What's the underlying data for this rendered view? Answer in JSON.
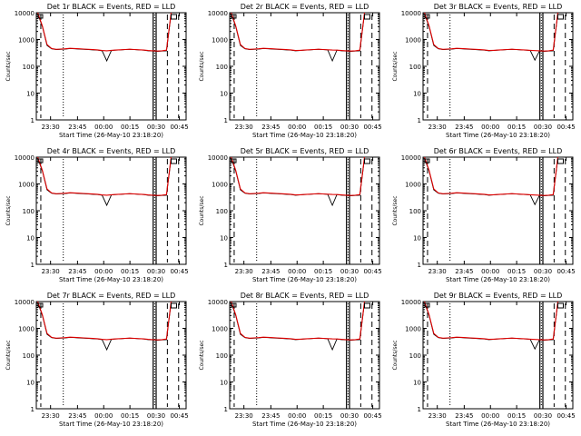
{
  "colors": {
    "events": "#000000",
    "lld": "#e00000",
    "background": "#ffffff",
    "axes": "#000000"
  },
  "shared_axes": {
    "ylabel": "Counts/sec",
    "xlabel": "Start Time (26-May-10 23:18:20)",
    "x_tick_labels": [
      "23:30",
      "23:45",
      "00:00",
      "00:15",
      "00:30",
      "00:45"
    ],
    "y_tick_labels": [
      "1",
      "10",
      "100",
      "1000",
      "10000"
    ],
    "y_scale": "log",
    "ylim": [
      1,
      10000
    ]
  },
  "chart_data": [
    {
      "type": "line",
      "title": "Det 1r BLACK = Events, RED = LLD",
      "series": [
        {
          "name": "Events",
          "values": [
            9000,
            3000,
            600,
            450,
            420,
            430,
            440,
            460,
            450,
            440,
            430,
            420,
            410,
            400,
            380,
            160,
            390,
            400,
            410,
            420,
            430,
            420,
            410,
            400,
            380,
            370,
            360,
            370,
            380,
            9000
          ]
        },
        {
          "name": "LLD",
          "values": [
            10000,
            3200,
            650,
            460,
            430,
            440,
            450,
            470,
            460,
            450,
            440,
            430,
            420,
            410,
            390,
            380,
            395,
            405,
            415,
            425,
            435,
            425,
            415,
            405,
            390,
            380,
            370,
            380,
            400,
            10000
          ]
        }
      ]
    },
    {
      "type": "line",
      "title": "Det 2r BLACK = Events, RED = LLD",
      "series": [
        {
          "name": "Events",
          "values": [
            9000,
            3000,
            600,
            450,
            420,
            430,
            440,
            460,
            450,
            440,
            430,
            420,
            410,
            400,
            380,
            390,
            400,
            410,
            420,
            430,
            420,
            410,
            160,
            400,
            380,
            370,
            360,
            370,
            380,
            9000
          ]
        },
        {
          "name": "LLD",
          "values": [
            10000,
            3200,
            650,
            460,
            430,
            440,
            450,
            470,
            460,
            450,
            440,
            430,
            420,
            410,
            390,
            395,
            405,
            415,
            425,
            435,
            425,
            415,
            405,
            400,
            390,
            380,
            370,
            380,
            400,
            10000
          ]
        }
      ]
    },
    {
      "type": "line",
      "title": "Det 3r BLACK = Events, RED = LLD",
      "series": [
        {
          "name": "Events",
          "values": [
            9000,
            3000,
            600,
            450,
            420,
            430,
            440,
            460,
            450,
            440,
            430,
            420,
            410,
            400,
            380,
            390,
            400,
            410,
            420,
            430,
            420,
            410,
            400,
            390,
            170,
            370,
            360,
            370,
            380,
            9000
          ]
        },
        {
          "name": "LLD",
          "values": [
            10000,
            3200,
            650,
            460,
            430,
            440,
            450,
            470,
            460,
            450,
            440,
            430,
            420,
            410,
            390,
            395,
            405,
            415,
            425,
            435,
            425,
            415,
            405,
            395,
            385,
            380,
            370,
            380,
            400,
            10000
          ]
        }
      ]
    },
    {
      "type": "line",
      "title": "Det 4r BLACK = Events, RED = LLD",
      "series": [
        {
          "name": "Events",
          "values": [
            9000,
            3000,
            600,
            450,
            420,
            430,
            440,
            460,
            450,
            440,
            430,
            420,
            410,
            400,
            380,
            160,
            390,
            400,
            410,
            420,
            430,
            420,
            410,
            400,
            380,
            370,
            360,
            370,
            380,
            9000
          ]
        },
        {
          "name": "LLD",
          "values": [
            10000,
            3200,
            650,
            460,
            430,
            440,
            450,
            470,
            460,
            450,
            440,
            430,
            420,
            410,
            390,
            380,
            395,
            405,
            415,
            425,
            435,
            425,
            415,
            405,
            390,
            380,
            370,
            380,
            400,
            10000
          ]
        }
      ]
    },
    {
      "type": "line",
      "title": "Det 5r BLACK = Events, RED = LLD",
      "series": [
        {
          "name": "Events",
          "values": [
            9000,
            3000,
            600,
            450,
            420,
            430,
            440,
            460,
            450,
            440,
            430,
            420,
            410,
            400,
            380,
            390,
            400,
            410,
            420,
            430,
            420,
            410,
            160,
            400,
            380,
            370,
            360,
            370,
            380,
            9000
          ]
        },
        {
          "name": "LLD",
          "values": [
            10000,
            3200,
            650,
            460,
            430,
            440,
            450,
            470,
            460,
            450,
            440,
            430,
            420,
            410,
            390,
            395,
            405,
            415,
            425,
            435,
            425,
            415,
            405,
            400,
            390,
            380,
            370,
            380,
            400,
            10000
          ]
        }
      ]
    },
    {
      "type": "line",
      "title": "Det 6r BLACK = Events, RED = LLD",
      "series": [
        {
          "name": "Events",
          "values": [
            9000,
            3000,
            600,
            450,
            420,
            430,
            440,
            460,
            450,
            440,
            430,
            420,
            410,
            400,
            380,
            390,
            400,
            410,
            420,
            430,
            420,
            410,
            400,
            390,
            170,
            370,
            360,
            370,
            380,
            9000
          ]
        },
        {
          "name": "LLD",
          "values": [
            10000,
            3200,
            650,
            460,
            430,
            440,
            450,
            470,
            460,
            450,
            440,
            430,
            420,
            410,
            390,
            395,
            405,
            415,
            425,
            435,
            425,
            415,
            405,
            395,
            385,
            380,
            370,
            380,
            400,
            10000
          ]
        }
      ]
    },
    {
      "type": "line",
      "title": "Det 7r BLACK = Events, RED = LLD",
      "series": [
        {
          "name": "Events",
          "values": [
            9000,
            3000,
            600,
            450,
            420,
            430,
            440,
            460,
            450,
            440,
            430,
            420,
            410,
            400,
            380,
            160,
            390,
            400,
            410,
            420,
            430,
            420,
            410,
            400,
            380,
            370,
            360,
            370,
            380,
            9000
          ]
        },
        {
          "name": "LLD",
          "values": [
            10000,
            3200,
            650,
            460,
            430,
            440,
            450,
            470,
            460,
            450,
            440,
            430,
            420,
            410,
            390,
            380,
            395,
            405,
            415,
            425,
            435,
            425,
            415,
            405,
            390,
            380,
            370,
            380,
            400,
            10000
          ]
        }
      ]
    },
    {
      "type": "line",
      "title": "Det 8r BLACK = Events, RED = LLD",
      "series": [
        {
          "name": "Events",
          "values": [
            9000,
            3000,
            600,
            450,
            420,
            430,
            440,
            460,
            450,
            440,
            430,
            420,
            410,
            400,
            380,
            390,
            400,
            410,
            420,
            430,
            420,
            410,
            160,
            400,
            380,
            370,
            360,
            370,
            380,
            9000
          ]
        },
        {
          "name": "LLD",
          "values": [
            10000,
            3200,
            650,
            460,
            430,
            440,
            450,
            470,
            460,
            450,
            440,
            430,
            420,
            410,
            390,
            395,
            405,
            415,
            425,
            435,
            425,
            415,
            405,
            400,
            390,
            380,
            370,
            380,
            400,
            10000
          ]
        }
      ]
    },
    {
      "type": "line",
      "title": "Det 9r BLACK = Events, RED = LLD",
      "series": [
        {
          "name": "Events",
          "values": [
            9000,
            3000,
            600,
            450,
            420,
            430,
            440,
            460,
            450,
            440,
            430,
            420,
            410,
            400,
            380,
            390,
            400,
            410,
            420,
            430,
            420,
            410,
            400,
            390,
            170,
            370,
            360,
            370,
            380,
            9000
          ]
        },
        {
          "name": "LLD",
          "values": [
            10000,
            3200,
            650,
            460,
            430,
            440,
            450,
            470,
            460,
            450,
            440,
            430,
            420,
            410,
            390,
            395,
            405,
            415,
            425,
            435,
            425,
            415,
            405,
            395,
            385,
            380,
            370,
            380,
            400,
            10000
          ]
        }
      ]
    }
  ]
}
